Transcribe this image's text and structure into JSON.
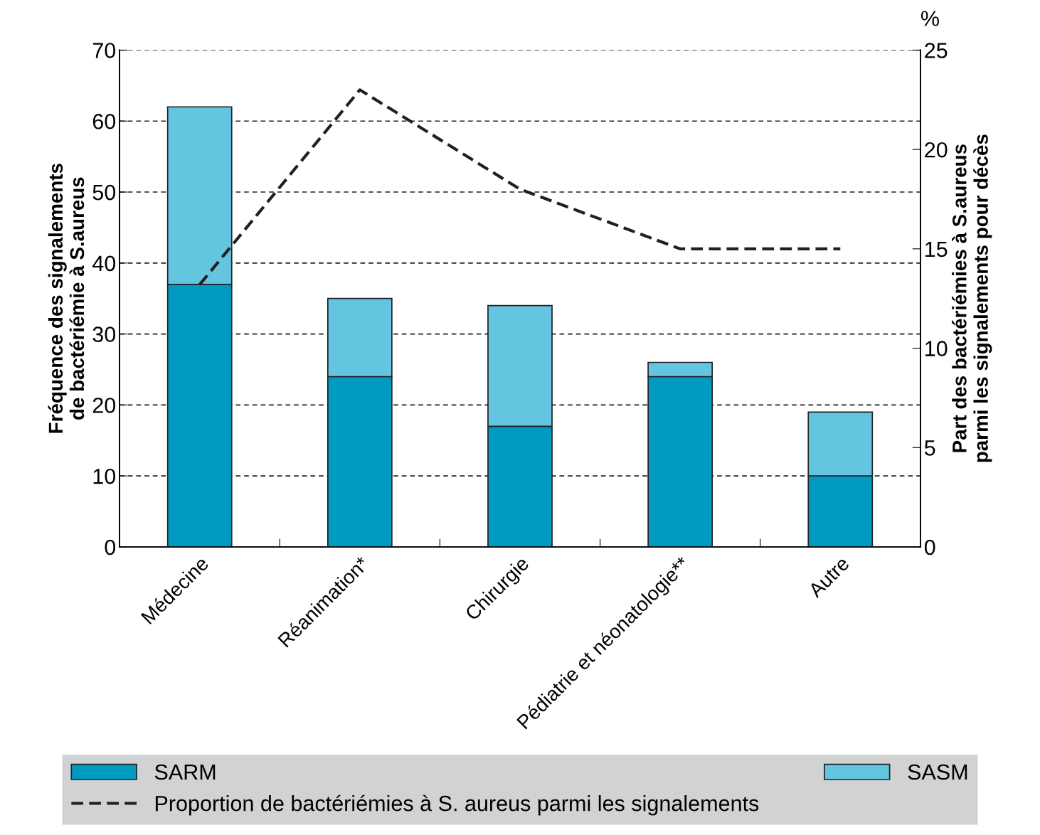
{
  "chart_data": {
    "type": "bar",
    "stacked": true,
    "categories": [
      "Médecine",
      "Réanimation*",
      "Chirurgie",
      "Pédiatrie et néonatologie**",
      "Autre"
    ],
    "series": [
      {
        "name": "SARM",
        "color": "#009ac3",
        "values": [
          37,
          24,
          17,
          24,
          10
        ]
      },
      {
        "name": "SASM",
        "color": "#63c5df",
        "values": [
          25,
          11,
          17,
          2,
          9
        ]
      },
      {
        "name": "Proportion de bactériémies à S. aureus parmi les signalements",
        "type": "line",
        "axis": "y2",
        "color": "#231f20",
        "line_style": "dashed",
        "marker": "none",
        "values": [
          13.2,
          23,
          18,
          15,
          15
        ]
      }
    ],
    "ylabel": "Fréquence des signalements\nde bactériémie à S.aureus",
    "y2label": "Part des bactériémies à S.aureus\nparmi les signalements pour décès",
    "ylim": [
      0,
      70
    ],
    "yticks": [
      0,
      10,
      20,
      30,
      40,
      50,
      60,
      70
    ],
    "y2lim": [
      0,
      25
    ],
    "y2ticks": [
      0,
      5,
      10,
      15,
      20,
      25
    ],
    "annotations": [
      "%"
    ],
    "grid": "y",
    "legend": "bottom"
  }
}
